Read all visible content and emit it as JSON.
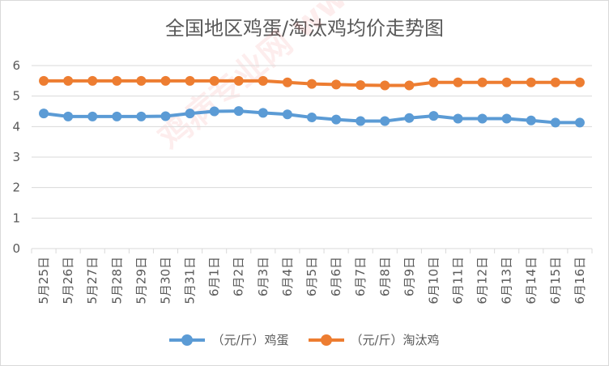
{
  "chart_data": {
    "type": "line",
    "title": "全国地区鸡蛋/淘汰鸡均价走势图",
    "categories": [
      "5月25日",
      "5月26日",
      "5月27日",
      "5月28日",
      "5月29日",
      "5月30日",
      "5月31日",
      "6月1日",
      "6月2日",
      "6月3日",
      "6月4日",
      "6月5日",
      "6月6日",
      "6月7日",
      "6月8日",
      "6月9日",
      "6月10日",
      "6月11日",
      "6月12日",
      "6月13日",
      "6月14日",
      "6月15日",
      "6月16日"
    ],
    "series": [
      {
        "name": "（元/斤）鸡蛋",
        "color": "#5b9bd5",
        "values": [
          4.43,
          4.33,
          4.33,
          4.33,
          4.33,
          4.34,
          4.43,
          4.5,
          4.51,
          4.45,
          4.4,
          4.3,
          4.23,
          4.18,
          4.18,
          4.28,
          4.35,
          4.26,
          4.26,
          4.26,
          4.2,
          4.13,
          4.13
        ]
      },
      {
        "name": "（元/斤）淘汰鸡",
        "color": "#ed7d31",
        "values": [
          5.5,
          5.5,
          5.5,
          5.5,
          5.5,
          5.5,
          5.5,
          5.5,
          5.5,
          5.5,
          5.45,
          5.4,
          5.38,
          5.36,
          5.35,
          5.35,
          5.45,
          5.45,
          5.45,
          5.45,
          5.45,
          5.45,
          5.45
        ]
      }
    ],
    "ylim": [
      0,
      6
    ],
    "yticks": [
      0,
      1,
      2,
      3,
      4,
      5,
      6
    ],
    "grid": true,
    "legend": "bottom",
    "watermark": "鸡病专业网 www.jbzyw.com"
  }
}
